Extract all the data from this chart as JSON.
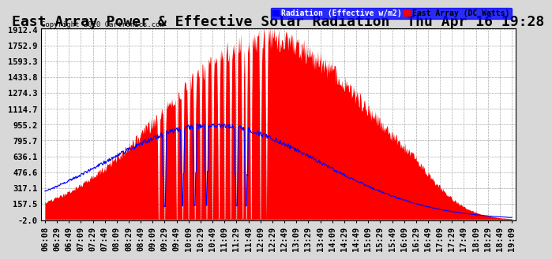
{
  "title": "East Array Power & Effective Solar Radiation  Thu Apr 16 19:28",
  "copyright": "Copyright 2020 Cartronics.com",
  "legend_labels": [
    "Radiation (Effective w/m2)",
    "East Array (DC Watts)"
  ],
  "yticks": [
    -2.0,
    157.5,
    317.1,
    476.6,
    636.1,
    795.7,
    955.2,
    1114.7,
    1274.3,
    1433.8,
    1593.3,
    1752.9,
    1912.4
  ],
  "ymin": -2.0,
  "ymax": 1912.4,
  "background_color": "#d8d8d8",
  "plot_bg_color": "#ffffff",
  "grid_color": "#aaaaaa",
  "title_fontsize": 13,
  "tick_fontsize": 7.5,
  "bar_color": "#ff0000",
  "line_color": "#0000ff",
  "xtick_labels": [
    "06:08",
    "06:29",
    "06:49",
    "07:09",
    "07:29",
    "07:49",
    "08:09",
    "08:29",
    "08:49",
    "09:09",
    "09:29",
    "09:49",
    "10:09",
    "10:29",
    "10:49",
    "11:09",
    "11:29",
    "11:49",
    "12:09",
    "12:29",
    "12:49",
    "13:09",
    "13:29",
    "13:49",
    "14:09",
    "14:29",
    "14:49",
    "15:09",
    "15:29",
    "15:49",
    "16:09",
    "16:29",
    "16:49",
    "17:09",
    "17:29",
    "17:49",
    "18:09",
    "18:29",
    "18:49",
    "19:09"
  ],
  "n_points": 800,
  "peak_power": 1912.4,
  "peak_radiation": 950
}
